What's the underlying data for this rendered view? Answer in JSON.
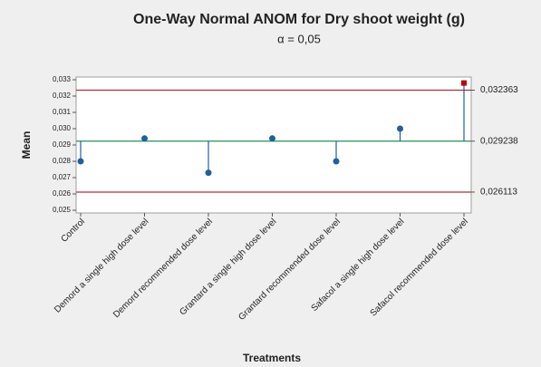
{
  "chart_data": {
    "type": "anom",
    "title": "One-Way Normal ANOM for Dry shoot weight (g)",
    "subtitle": "α = 0,05",
    "x_label": "Treatments",
    "y_label": "Mean",
    "categories": [
      "Control",
      "Demord a single high dose level",
      "Demord recommended dose level",
      "Grantard a single high dose level",
      "Grantard recommended dose level",
      "Safacol a single high dose level",
      "Safacol recommended dose level"
    ],
    "values": [
      0.028,
      0.0294,
      0.0273,
      0.0294,
      0.028,
      0.03,
      0.0328
    ],
    "color": "#1f5f9f",
    "out_color": "#c00000",
    "center": {
      "value": 0.029238,
      "label": "0,029238"
    },
    "upper_limit": {
      "value": 0.032363,
      "label": "0,032363"
    },
    "lower_limit": {
      "value": 0.026113,
      "label": "0,026113"
    },
    "center_color": "#2e8b57",
    "limit_color": "#b03030",
    "ylim": [
      0.025,
      0.033
    ],
    "yticks": [
      {
        "value": 0.025,
        "label": "0,025"
      },
      {
        "value": 0.026,
        "label": "0,026"
      },
      {
        "value": 0.027,
        "label": "0,027"
      },
      {
        "value": 0.028,
        "label": "0,028"
      },
      {
        "value": 0.029,
        "label": "0,029"
      },
      {
        "value": 0.03,
        "label": "0,030"
      },
      {
        "value": 0.031,
        "label": "0,031"
      },
      {
        "value": 0.032,
        "label": "0,032"
      },
      {
        "value": 0.033,
        "label": "0,033"
      }
    ]
  }
}
